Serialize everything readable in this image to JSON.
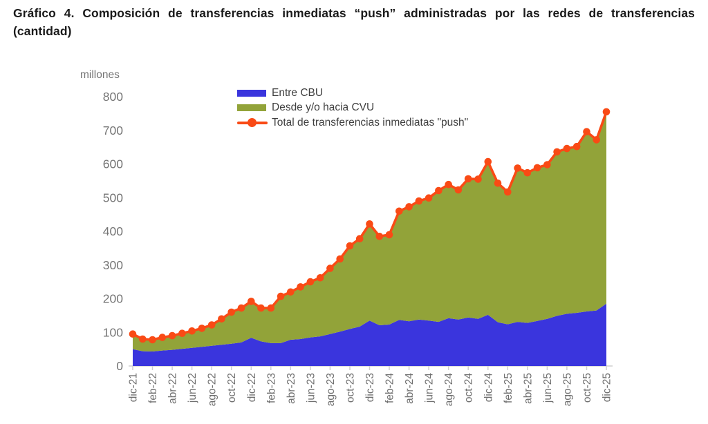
{
  "title": "Gráfico 4. Composición de transferencias inmediatas “push” administradas por las redes de transferencias (cantidad)",
  "unit_label": "millones",
  "legend": {
    "entre_cbu": "Entre CBU",
    "cvu": "Desde y/o hacia CVU",
    "total": "Total de transferencias inmediatas \"push\""
  },
  "chart_data": {
    "type": "area",
    "stacked": true,
    "title": "Composición de transferencias inmediatas push (cantidad)",
    "ylabel": "millones",
    "xlabel": "",
    "ylim": [
      0,
      800
    ],
    "yticks": [
      0,
      100,
      200,
      300,
      400,
      500,
      600,
      700,
      800
    ],
    "grid": false,
    "legend_position": "top-left-inside",
    "x": [
      "dic-21",
      "ene-22",
      "feb-22",
      "mar-22",
      "abr-22",
      "may-22",
      "jun-22",
      "jul-22",
      "ago-22",
      "sep-22",
      "oct-22",
      "nov-22",
      "dic-22",
      "ene-23",
      "feb-23",
      "mar-23",
      "abr-23",
      "may-23",
      "jun-23",
      "jul-23",
      "ago-23",
      "sep-23",
      "oct-23",
      "nov-23",
      "dic-23",
      "ene-24",
      "feb-24",
      "mar-24",
      "abr-24",
      "may-24",
      "jun-24",
      "jul-24",
      "ago-24",
      "sep-24",
      "oct-24",
      "nov-24",
      "dic-24",
      "ene-25",
      "feb-25",
      "mar-25",
      "abr-25",
      "may-25",
      "jun-25",
      "jul-25",
      "ago-25",
      "sep-25",
      "oct-25",
      "nov-25",
      "dic-25"
    ],
    "x_tick_labels": [
      "dic-21",
      "feb-22",
      "abr-22",
      "jun-22",
      "ago-22",
      "oct-22",
      "dic-22",
      "feb-23",
      "abr-23",
      "jun-23",
      "ago-23",
      "oct-23",
      "dic-23",
      "feb-24",
      "abr-24",
      "jun-24",
      "ago-24",
      "oct-24",
      "dic-24",
      "feb-25",
      "abr-25",
      "jun-25",
      "ago-25",
      "oct-25",
      "dic-25"
    ],
    "series": [
      {
        "name": "Entre CBU",
        "type": "area",
        "color": "#3a35dd",
        "values": [
          50,
          44,
          43,
          46,
          48,
          51,
          54,
          57,
          60,
          63,
          66,
          70,
          84,
          73,
          68,
          68,
          78,
          80,
          85,
          88,
          95,
          102,
          110,
          117,
          135,
          121,
          123,
          137,
          133,
          138,
          135,
          131,
          142,
          138,
          144,
          140,
          152,
          130,
          124,
          131,
          128,
          134,
          140,
          149,
          155,
          158,
          162,
          165,
          185
        ]
      },
      {
        "name": "Desde y/o hacia CVU",
        "type": "area",
        "color": "#92a339",
        "values": [
          45,
          36,
          35,
          39,
          42,
          46,
          50,
          55,
          62,
          77,
          94,
          102,
          108,
          99,
          104,
          139,
          142,
          155,
          165,
          174,
          195,
          216,
          247,
          261,
          287,
          264,
          267,
          323,
          340,
          352,
          364,
          390,
          397,
          385,
          412,
          415,
          455,
          413,
          393,
          457,
          446,
          455,
          458,
          487,
          491,
          494,
          534,
          507,
          570
        ]
      },
      {
        "name": "Total de transferencias inmediatas \"push\"",
        "type": "line",
        "color": "#f94a15",
        "values": [
          95,
          80,
          78,
          85,
          90,
          97,
          104,
          112,
          122,
          140,
          160,
          172,
          192,
          172,
          172,
          207,
          220,
          235,
          250,
          262,
          290,
          318,
          357,
          378,
          422,
          385,
          390,
          460,
          473,
          490,
          499,
          521,
          539,
          523,
          556,
          555,
          607,
          543,
          517,
          588,
          574,
          589,
          598,
          636,
          646,
          652,
          696,
          672,
          755
        ]
      }
    ],
    "axis_color": "#cfcfcf",
    "tick_label_color": "#6f6f6f"
  }
}
